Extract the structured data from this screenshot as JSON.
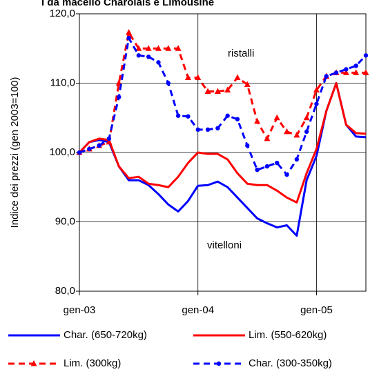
{
  "chart_data": {
    "type": "line",
    "title": "i da macello Charolais e Limousine",
    "y_label": "Indice dei prezzi (gen 2003=100)",
    "annotations": [
      "ristalli",
      "vitelloni"
    ],
    "x": [
      0,
      1,
      2,
      3,
      4,
      5,
      6,
      7,
      8,
      9,
      10,
      11,
      12,
      13,
      14,
      15,
      16,
      17,
      18,
      19,
      20,
      21,
      22,
      23,
      24,
      25,
      26,
      27,
      28,
      29
    ],
    "xlim": [
      0,
      29
    ],
    "xticks": [
      {
        "value": 0,
        "label": "gen-03"
      },
      {
        "value": 12,
        "label": "gen-04"
      },
      {
        "value": 24,
        "label": "gen-05"
      }
    ],
    "ylim": [
      80,
      120
    ],
    "yticks": [
      {
        "value": 80,
        "label": "80,0"
      },
      {
        "value": 90,
        "label": "90,0"
      },
      {
        "value": 100,
        "label": "100,0"
      },
      {
        "value": 110,
        "label": "110,0"
      },
      {
        "value": 120,
        "label": "120,0"
      }
    ],
    "grid": true,
    "series": [
      {
        "name": "Char. (650-720kg)",
        "color": "#0000ff",
        "style": "solid",
        "values": [
          100,
          101.5,
          101.8,
          101.5,
          98,
          96,
          96,
          95.3,
          94,
          92.5,
          91.5,
          93,
          95.2,
          95.3,
          95.8,
          95,
          93.5,
          92,
          90.5,
          89.8,
          89.2,
          89.5,
          88,
          96,
          99.5,
          106,
          110,
          104,
          102.3,
          102.2
        ]
      },
      {
        "name": "Lim. (550-620kg)",
        "color": "#ff0000",
        "style": "solid",
        "values": [
          100,
          101.5,
          102,
          101.8,
          98,
          96.3,
          96.5,
          95.5,
          95.3,
          95,
          96.5,
          98.5,
          100,
          99.8,
          99.8,
          99,
          97,
          95.5,
          95.3,
          95.3,
          94.5,
          93.5,
          92.8,
          97,
          100.5,
          106,
          110,
          104,
          102.8,
          102.7
        ]
      },
      {
        "name": "Lim. (300kg)",
        "color": "#ff0000",
        "style": "dashed",
        "marker": "triangle",
        "values": [
          100,
          100.5,
          101,
          101.5,
          110,
          117.3,
          115,
          115,
          115,
          115,
          115,
          110.8,
          110.8,
          108.8,
          108.8,
          109,
          110.8,
          109.8,
          104.5,
          102,
          105,
          103,
          102.5,
          105,
          109,
          111,
          111.5,
          111.5,
          111.5,
          111.5
        ]
      },
      {
        "name": "Char. (300-350kg)",
        "color": "#0000ff",
        "style": "dashed",
        "marker": "circle",
        "values": [
          100,
          100.5,
          101,
          102,
          108,
          116.5,
          114,
          113.8,
          113,
          110,
          105.3,
          105.2,
          103.3,
          103.3,
          103.5,
          105.3,
          104.8,
          101,
          97.5,
          98,
          98.5,
          96.8,
          99,
          103,
          107,
          111,
          111.5,
          112,
          112.5,
          114
        ]
      }
    ]
  }
}
